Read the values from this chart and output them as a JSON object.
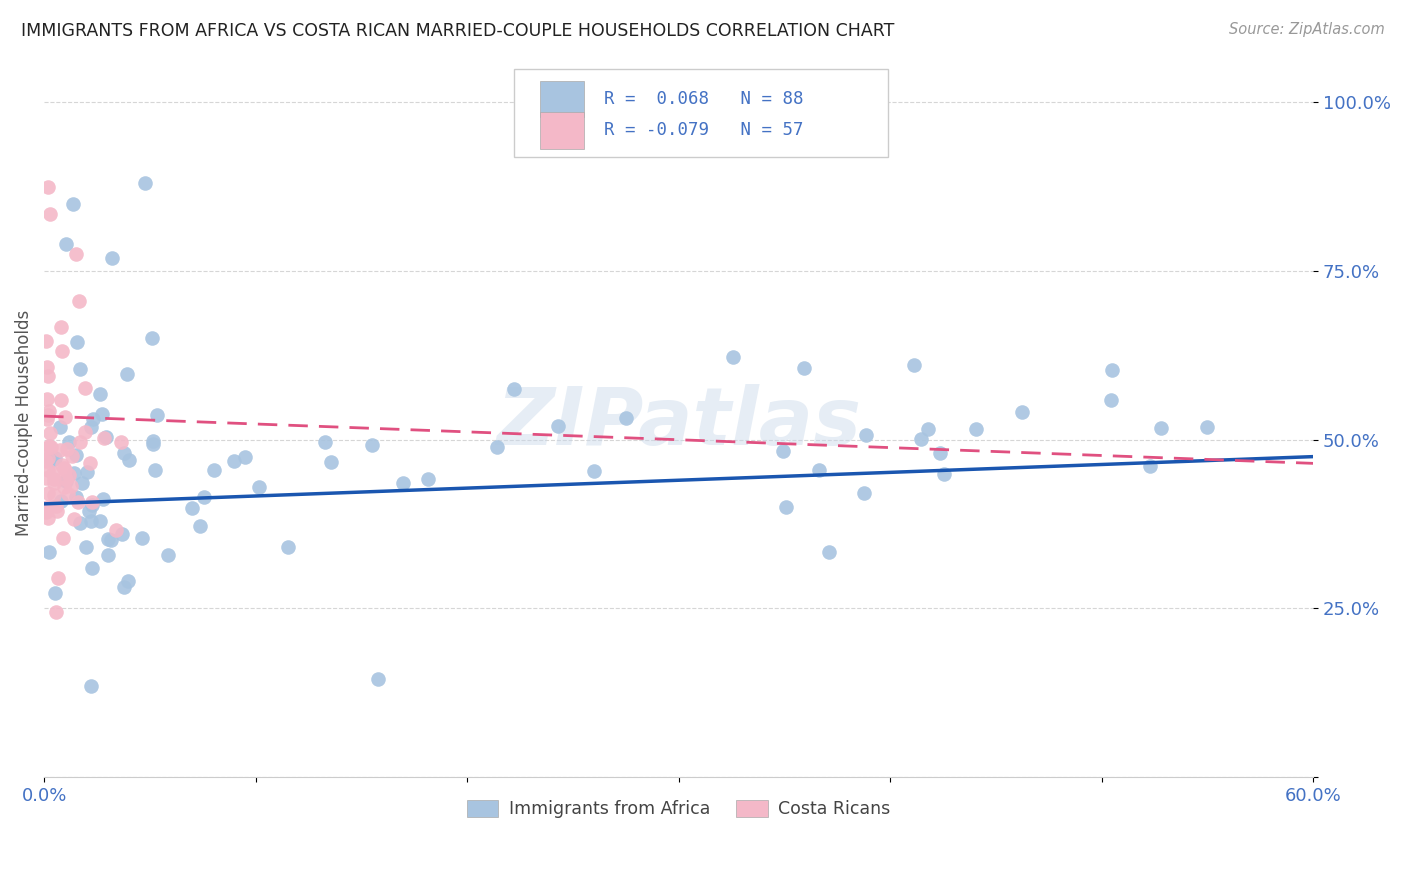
{
  "title": "IMMIGRANTS FROM AFRICA VS COSTA RICAN MARRIED-COUPLE HOUSEHOLDS CORRELATION CHART",
  "source": "Source: ZipAtlas.com",
  "ylabel": "Married-couple Households",
  "y_ticks": [
    0.0,
    0.25,
    0.5,
    0.75,
    1.0
  ],
  "y_tick_labels": [
    "",
    "25.0%",
    "50.0%",
    "75.0%",
    "100.0%"
  ],
  "x_range": [
    0.0,
    0.6
  ],
  "y_range": [
    0.0,
    1.05
  ],
  "legend_labels": [
    "Immigrants from Africa",
    "Costa Ricans"
  ],
  "blue_color": "#a8c4e0",
  "pink_color": "#f4b8c8",
  "blue_line_color": "#1a56b0",
  "pink_line_color": "#e05080",
  "axis_label_color": "#4472c4",
  "watermark": "ZIPatlas",
  "blue_line_y_start": 0.405,
  "blue_line_y_end": 0.475,
  "pink_line_y_start": 0.535,
  "pink_line_y_end": 0.465
}
